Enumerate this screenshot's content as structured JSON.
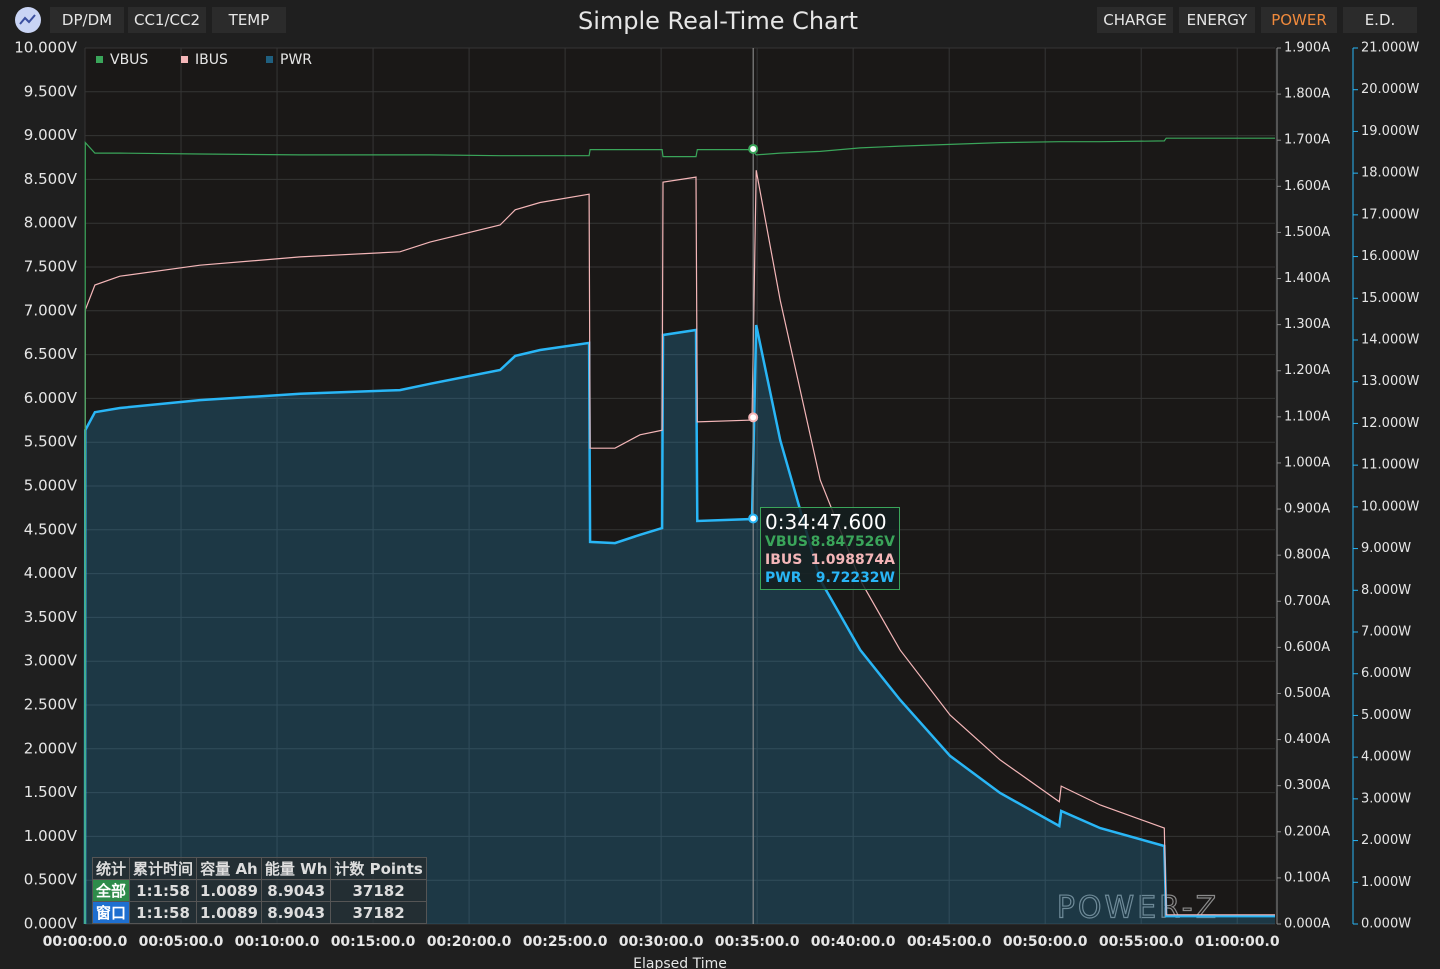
{
  "toolbar": {
    "left_buttons": [
      "DP/DM",
      "CC1/CC2",
      "TEMP"
    ],
    "right_tabs": [
      "CHARGE",
      "ENERGY",
      "POWER",
      "E.D."
    ],
    "active_tab": 2
  },
  "chart_data": {
    "type": "line",
    "title": "Simple Real-Time Chart",
    "xlabel": "Elapsed Time",
    "legend": "top-left",
    "grid": true,
    "watermark": "POWER-Z",
    "x": [
      0,
      1,
      31,
      109,
      359,
      672,
      984,
      1078,
      1297,
      1344,
      1422,
      1575,
      1578,
      1656,
      1734,
      1803,
      1806,
      1909,
      1913,
      2084,
      2097,
      2172,
      2297,
      2422,
      2547,
      2703,
      2859,
      3044,
      3050,
      3172,
      3372,
      3378,
      3718
    ],
    "series": [
      {
        "name": "VBUS",
        "color": "#3aa55a",
        "axis": "y",
        "values": [
          0,
          8.92,
          8.8,
          8.8,
          8.79,
          8.78,
          8.78,
          8.78,
          8.77,
          8.77,
          8.77,
          8.77,
          8.84,
          8.84,
          8.84,
          8.84,
          8.76,
          8.76,
          8.84,
          8.84,
          8.78,
          8.8,
          8.82,
          8.86,
          8.88,
          8.9,
          8.92,
          8.93,
          8.93,
          8.93,
          8.94,
          8.97,
          8.97
        ]
      },
      {
        "name": "IBUS",
        "color": "#f4b6b8",
        "axis": "y2",
        "values": [
          0,
          1.332,
          1.386,
          1.405,
          1.429,
          1.447,
          1.458,
          1.479,
          1.516,
          1.549,
          1.565,
          1.583,
          1.032,
          1.032,
          1.061,
          1.071,
          1.609,
          1.62,
          1.089,
          1.093,
          1.635,
          1.353,
          0.963,
          0.746,
          0.594,
          0.453,
          0.356,
          0.265,
          0.299,
          0.258,
          0.208,
          0.02,
          0.02
        ]
      },
      {
        "name": "PWR",
        "color": "#29b6f6",
        "legend_color": "#1f5f7f",
        "area": true,
        "axis": "y3",
        "values": [
          0,
          11.84,
          12.27,
          12.37,
          12.56,
          12.71,
          12.8,
          12.95,
          13.28,
          13.62,
          13.76,
          13.93,
          9.16,
          9.13,
          9.33,
          9.49,
          14.12,
          14.24,
          9.66,
          9.71,
          14.36,
          11.6,
          8.25,
          6.57,
          5.37,
          4.03,
          3.14,
          2.35,
          2.71,
          2.3,
          1.87,
          0.19,
          0.19
        ]
      }
    ],
    "xlim": [
      0,
      3718
    ],
    "xticks": [
      {
        "value": 0,
        "label": "00:00:00.0"
      },
      {
        "value": 300,
        "label": "00:05:00.0"
      },
      {
        "value": 600,
        "label": "00:10:00.0"
      },
      {
        "value": 900,
        "label": "00:15:00.0"
      },
      {
        "value": 1200,
        "label": "00:20:00.0"
      },
      {
        "value": 1500,
        "label": "00:25:00.0"
      },
      {
        "value": 1800,
        "label": "00:30:00.0"
      },
      {
        "value": 2100,
        "label": "00:35:00.0"
      },
      {
        "value": 2400,
        "label": "00:40:00.0"
      },
      {
        "value": 2700,
        "label": "00:45:00.0"
      },
      {
        "value": 3000,
        "label": "00:50:00.0"
      },
      {
        "value": 3300,
        "label": "00:55:00.0"
      },
      {
        "value": 3600,
        "label": "01:00:00.0"
      }
    ],
    "ylim": [
      0,
      10
    ],
    "yticks": [
      {
        "value": 0,
        "label": "0.000V"
      },
      {
        "value": 0.5,
        "label": "0.500V"
      },
      {
        "value": 1,
        "label": "1.000V"
      },
      {
        "value": 1.5,
        "label": "1.500V"
      },
      {
        "value": 2,
        "label": "2.000V"
      },
      {
        "value": 2.5,
        "label": "2.500V"
      },
      {
        "value": 3,
        "label": "3.000V"
      },
      {
        "value": 3.5,
        "label": "3.500V"
      },
      {
        "value": 4,
        "label": "4.000V"
      },
      {
        "value": 4.5,
        "label": "4.500V"
      },
      {
        "value": 5,
        "label": "5.000V"
      },
      {
        "value": 5.5,
        "label": "5.500V"
      },
      {
        "value": 6,
        "label": "6.000V"
      },
      {
        "value": 6.5,
        "label": "6.500V"
      },
      {
        "value": 7,
        "label": "7.000V"
      },
      {
        "value": 7.5,
        "label": "7.500V"
      },
      {
        "value": 8,
        "label": "8.000V"
      },
      {
        "value": 8.5,
        "label": "8.500V"
      },
      {
        "value": 9,
        "label": "9.000V"
      },
      {
        "value": 9.5,
        "label": "9.500V"
      },
      {
        "value": 10,
        "label": "10.000V"
      }
    ],
    "y2lim": [
      0,
      1.9
    ],
    "y2ticks": [
      {
        "value": 0,
        "label": "0.000A"
      },
      {
        "value": 0.1,
        "label": "0.100A"
      },
      {
        "value": 0.2,
        "label": "0.200A"
      },
      {
        "value": 0.3,
        "label": "0.300A"
      },
      {
        "value": 0.4,
        "label": "0.400A"
      },
      {
        "value": 0.5,
        "label": "0.500A"
      },
      {
        "value": 0.6,
        "label": "0.600A"
      },
      {
        "value": 0.7,
        "label": "0.700A"
      },
      {
        "value": 0.8,
        "label": "0.800A"
      },
      {
        "value": 0.9,
        "label": "0.900A"
      },
      {
        "value": 1,
        "label": "1.000A"
      },
      {
        "value": 1.1,
        "label": "1.100A"
      },
      {
        "value": 1.2,
        "label": "1.200A"
      },
      {
        "value": 1.3,
        "label": "1.300A"
      },
      {
        "value": 1.4,
        "label": "1.400A"
      },
      {
        "value": 1.5,
        "label": "1.500A"
      },
      {
        "value": 1.6,
        "label": "1.600A"
      },
      {
        "value": 1.7,
        "label": "1.700A"
      },
      {
        "value": 1.8,
        "label": "1.800A"
      },
      {
        "value": 1.9,
        "label": "1.900A"
      }
    ],
    "y3lim": [
      0,
      21
    ],
    "y3ticks": [
      {
        "value": 0,
        "label": "0.000W"
      },
      {
        "value": 1,
        "label": "1.000W"
      },
      {
        "value": 2,
        "label": "2.000W"
      },
      {
        "value": 3,
        "label": "3.000W"
      },
      {
        "value": 4,
        "label": "4.000W"
      },
      {
        "value": 5,
        "label": "5.000W"
      },
      {
        "value": 6,
        "label": "6.000W"
      },
      {
        "value": 7,
        "label": "7.000W"
      },
      {
        "value": 8,
        "label": "8.000W"
      },
      {
        "value": 9,
        "label": "9.000W"
      },
      {
        "value": 10,
        "label": "10.000W"
      },
      {
        "value": 11,
        "label": "11.000W"
      },
      {
        "value": 12,
        "label": "12.000W"
      },
      {
        "value": 13,
        "label": "13.000W"
      },
      {
        "value": 14,
        "label": "14.000W"
      },
      {
        "value": 15,
        "label": "15.000W"
      },
      {
        "value": 16,
        "label": "16.000W"
      },
      {
        "value": 17,
        "label": "17.000W"
      },
      {
        "value": 18,
        "label": "18.000W"
      },
      {
        "value": 19,
        "label": "19.000W"
      },
      {
        "value": 20,
        "label": "20.000W"
      },
      {
        "value": 21,
        "label": "21.000W"
      }
    ],
    "cursor": {
      "x": 2087.6,
      "time_label": "0:34:47.600",
      "rows": [
        {
          "name": "VBUS",
          "value": 8.847526,
          "value_label": "8.847526V"
        },
        {
          "name": "IBUS",
          "value": 1.098874,
          "value_label": "1.098874A"
        },
        {
          "name": "PWR",
          "value": 9.72232,
          "value_label": "9.72232W"
        }
      ]
    }
  },
  "stats": {
    "headers": [
      "统计",
      "累计时间",
      "容量 Ah",
      "能量 Wh",
      "计数 Points"
    ],
    "rows": [
      [
        "全部",
        "1:1:58",
        "1.0089",
        "8.9043",
        "37182"
      ],
      [
        "窗口",
        "1:1:58",
        "1.0089",
        "8.9043",
        "37182"
      ]
    ]
  }
}
